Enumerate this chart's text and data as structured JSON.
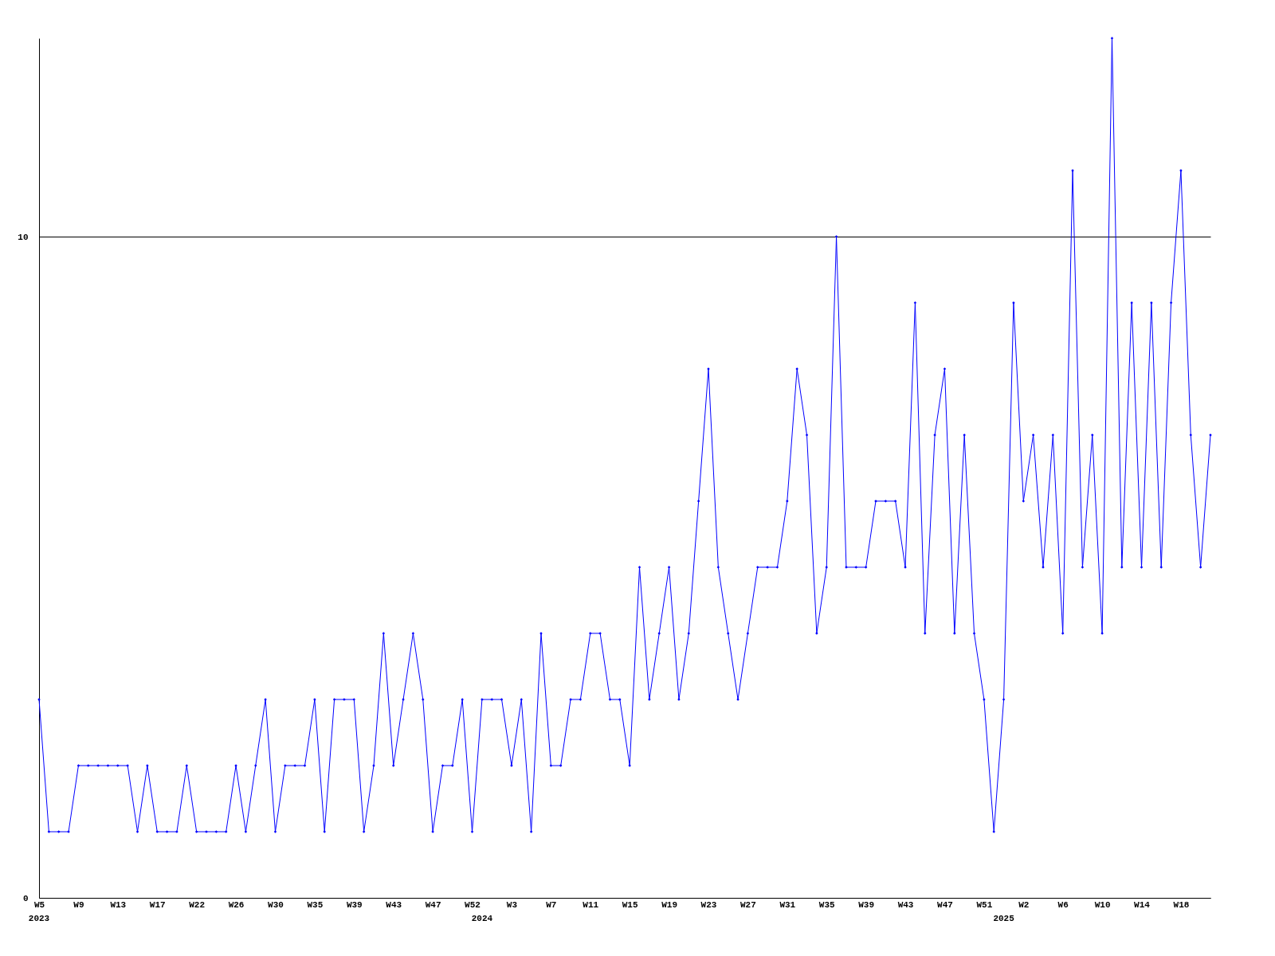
{
  "chart_data": {
    "type": "line",
    "categories": [
      "W5\n2023",
      null,
      null,
      null,
      "W9",
      null,
      null,
      null,
      "W13",
      null,
      null,
      null,
      "W17",
      null,
      null,
      null,
      "W22",
      null,
      null,
      null,
      "W26",
      null,
      null,
      null,
      "W30",
      null,
      null,
      null,
      "W35",
      null,
      null,
      null,
      "W39",
      null,
      null,
      null,
      "W43",
      null,
      null,
      null,
      "W47",
      null,
      null,
      null,
      "W52",
      "\n2024",
      null,
      null,
      "W3",
      null,
      null,
      null,
      "W7",
      null,
      null,
      null,
      "W11",
      null,
      null,
      null,
      "W15",
      null,
      null,
      null,
      "W19",
      null,
      null,
      null,
      "W23",
      null,
      null,
      null,
      "W27",
      null,
      null,
      null,
      "W31",
      null,
      null,
      null,
      "W35",
      null,
      null,
      null,
      "W39",
      null,
      null,
      null,
      "W43",
      null,
      null,
      null,
      "W47",
      null,
      null,
      null,
      "W51",
      null,
      "\n2025",
      null,
      "W2",
      null,
      null,
      null,
      "W6",
      null,
      null,
      null,
      "W10",
      null,
      null,
      null,
      "W14",
      null,
      null,
      null,
      "W18",
      null,
      null,
      null
    ],
    "series": [
      {
        "color": "#0000ff",
        "values": [
          3,
          1,
          1,
          1,
          2,
          2,
          2,
          2,
          2,
          2,
          1,
          2,
          1,
          1,
          1,
          2,
          1,
          1,
          1,
          1,
          2,
          1,
          2,
          3,
          1,
          2,
          2,
          2,
          3,
          1,
          3,
          3,
          3,
          1,
          2,
          4,
          2,
          3,
          4,
          3,
          1,
          2,
          2,
          3,
          1,
          3,
          3,
          3,
          2,
          3,
          1,
          4,
          2,
          2,
          3,
          3,
          4,
          4,
          3,
          3,
          2,
          5,
          3,
          4,
          5,
          3,
          4,
          6,
          8,
          5,
          4,
          3,
          4,
          5,
          5,
          5,
          6,
          8,
          7,
          4,
          5,
          10,
          5,
          5,
          5,
          6,
          6,
          6,
          5,
          9,
          4,
          7,
          8,
          4,
          7,
          4,
          3,
          1,
          3,
          9,
          6,
          7,
          5,
          7,
          4,
          11,
          5,
          7,
          4,
          13,
          5,
          9,
          5,
          9,
          5,
          9,
          11,
          7,
          5,
          7
        ]
      }
    ],
    "ylim": [
      0,
      13
    ],
    "yticks": [
      0,
      10
    ],
    "grid": "y",
    "marker": "diamond",
    "line_style": "solid"
  }
}
